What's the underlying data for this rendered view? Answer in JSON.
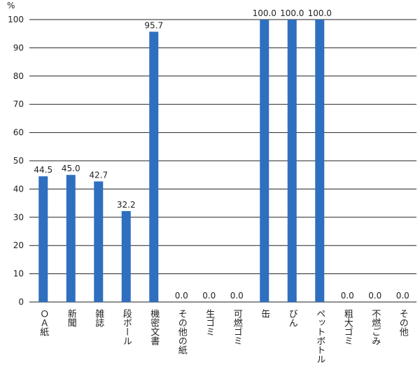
{
  "chart_data": {
    "type": "bar",
    "y_unit": "%",
    "categories": [
      "ＯＡ紙",
      "新聞",
      "雑誌",
      "段ボール",
      "機密文書",
      "その他の紙",
      "生ゴミ",
      "可燃ゴミ",
      "缶",
      "びん",
      "ペットボトル",
      "粗大ゴミ",
      "不燃ごみ",
      "その他"
    ],
    "values": [
      44.5,
      45.0,
      42.7,
      32.2,
      95.7,
      0.0,
      0.0,
      0.0,
      100.0,
      100.0,
      100.0,
      0.0,
      0.0,
      0.0
    ],
    "value_labels": [
      "44.5",
      "45.0",
      "42.7",
      "32.2",
      "95.7",
      "0.0",
      "0.0",
      "0.0",
      "100.0",
      "100.0",
      "100.0",
      "0.0",
      "0.0",
      "0.0"
    ],
    "color": "#2e6fc0",
    "ylim": [
      0,
      100
    ],
    "yticks": [
      0,
      10,
      20,
      30,
      40,
      50,
      60,
      70,
      80,
      90,
      100
    ],
    "grid": true
  }
}
